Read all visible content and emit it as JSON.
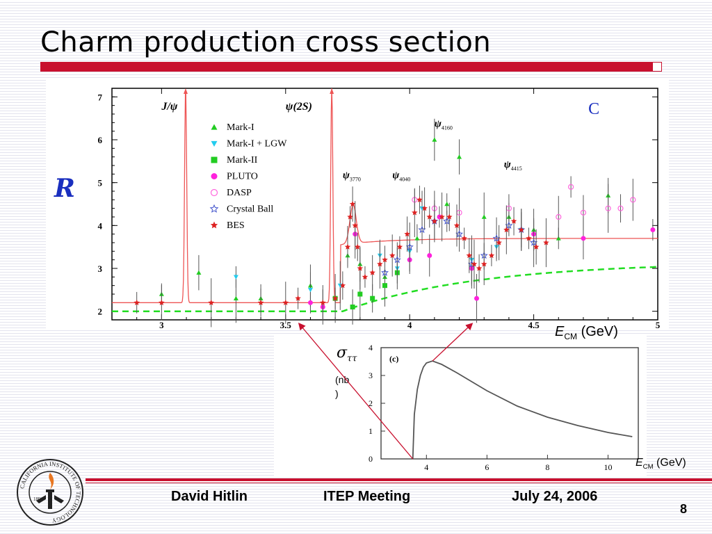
{
  "slide": {
    "title": "Charm production cross section",
    "footer": {
      "author": "David Hitlin",
      "meeting": "ITEP Meeting",
      "date": "July 24, 2006",
      "page": "8"
    },
    "logo_text": "CALIFORNIA INSTITUTE OF TECHNOLOGY",
    "logo_year": "1891",
    "colors": {
      "accent": "#c8102e",
      "r_label": "#1a2fbf"
    }
  },
  "chart_data": [
    {
      "type": "scatter",
      "ylabel": "R",
      "xlabel_italic": "E",
      "xlabel_sub": "CM",
      "xlabel_unit": " (GeV)",
      "panel_label": "C",
      "xlim": [
        2.8,
        5.0
      ],
      "ylim": [
        1.8,
        7.2
      ],
      "xticks": [
        "3",
        "3.5",
        "4",
        "4.5",
        "5"
      ],
      "xtick_values": [
        3,
        3.5,
        4,
        4.5,
        5
      ],
      "yticks": [
        "2",
        "3",
        "4",
        "5",
        "6",
        "7"
      ],
      "ytick_values": [
        2,
        3,
        4,
        5,
        6,
        7
      ],
      "resonances": [
        {
          "label": "J/ψ",
          "x": 3.097
        },
        {
          "label": "ψ(2S)",
          "x": 3.686
        },
        {
          "label": "ψ3770",
          "x": 3.77
        },
        {
          "label": "ψ4040",
          "x": 4.04
        },
        {
          "label": "ψ4160",
          "x": 4.16
        },
        {
          "label": "ψ4415",
          "x": 4.415
        }
      ],
      "legend": [
        {
          "name": "Mark-I",
          "marker": "triangle-up",
          "color": "#22cc22"
        },
        {
          "name": "Mark-I + LGW",
          "marker": "triangle-down",
          "color": "#22ccee"
        },
        {
          "name": "Mark-II",
          "marker": "square",
          "color": "#22cc22"
        },
        {
          "name": "PLUTO",
          "marker": "circle",
          "color": "#ff22dd"
        },
        {
          "name": "DASP",
          "marker": "circle-open",
          "color": "#ff66dd"
        },
        {
          "name": "Crystal Ball",
          "marker": "star-open",
          "color": "#4455cc"
        },
        {
          "name": "BES",
          "marker": "star",
          "color": "#dd2222"
        }
      ],
      "series": [
        {
          "name": "Mark-I",
          "color": "#22cc22",
          "marker": "triangle-up",
          "points": [
            [
              3.0,
              2.4
            ],
            [
              3.15,
              2.9
            ],
            [
              3.3,
              2.3
            ],
            [
              3.4,
              2.3
            ],
            [
              3.6,
              2.6
            ],
            [
              3.75,
              3.3
            ],
            [
              3.8,
              3.1
            ],
            [
              3.9,
              2.8
            ],
            [
              4.03,
              3.7
            ],
            [
              4.1,
              6.0
            ],
            [
              4.15,
              4.5
            ],
            [
              4.2,
              5.6
            ],
            [
              4.3,
              4.2
            ],
            [
              4.4,
              4.2
            ],
            [
              4.5,
              3.9
            ],
            [
              4.6,
              3.7
            ],
            [
              4.8,
              4.7
            ]
          ]
        },
        {
          "name": "Mark-I + LGW",
          "color": "#22ccee",
          "marker": "triangle-down",
          "points": [
            [
              3.3,
              2.8
            ],
            [
              3.6,
              2.5
            ],
            [
              3.72,
              2.6
            ],
            [
              3.88,
              3.3
            ],
            [
              3.95,
              3.0
            ],
            [
              4.0,
              3.4
            ],
            [
              4.05,
              4.4
            ],
            [
              4.25,
              3.2
            ],
            [
              4.35,
              3.5
            ],
            [
              4.45,
              3.9
            ]
          ]
        },
        {
          "name": "Mark-II",
          "color": "#22cc22",
          "marker": "square",
          "points": [
            [
              3.7,
              2.3
            ],
            [
              3.77,
              2.1
            ],
            [
              3.8,
              2.4
            ],
            [
              3.85,
              2.3
            ],
            [
              3.9,
              2.6
            ],
            [
              3.95,
              2.9
            ]
          ]
        },
        {
          "name": "PLUTO",
          "color": "#ff22dd",
          "marker": "circle",
          "points": [
            [
              3.6,
              2.2
            ],
            [
              3.65,
              2.1
            ],
            [
              3.78,
              3.8
            ],
            [
              4.0,
              3.2
            ],
            [
              4.08,
              3.3
            ],
            [
              4.12,
              4.2
            ],
            [
              4.25,
              3.0
            ],
            [
              4.27,
              2.3
            ],
            [
              4.5,
              3.8
            ],
            [
              4.7,
              3.7
            ],
            [
              4.98,
              3.9
            ]
          ]
        },
        {
          "name": "DASP",
          "color": "#ff66dd",
          "marker": "circle-open",
          "points": [
            [
              4.02,
              4.6
            ],
            [
              4.1,
              4.4
            ],
            [
              4.2,
              4.3
            ],
            [
              4.4,
              4.4
            ],
            [
              4.6,
              4.2
            ],
            [
              4.65,
              4.9
            ],
            [
              4.7,
              4.3
            ],
            [
              4.8,
              4.4
            ],
            [
              4.85,
              4.4
            ],
            [
              4.9,
              4.6
            ]
          ]
        },
        {
          "name": "Crystal Ball",
          "color": "#4455cc",
          "marker": "star-open",
          "points": [
            [
              3.9,
              2.9
            ],
            [
              3.95,
              3.2
            ],
            [
              4.0,
              3.5
            ],
            [
              4.05,
              3.9
            ],
            [
              4.1,
              4.1
            ],
            [
              4.15,
              4.1
            ],
            [
              4.2,
              3.8
            ],
            [
              4.25,
              3.1
            ],
            [
              4.3,
              3.3
            ],
            [
              4.35,
              3.7
            ],
            [
              4.4,
              4.0
            ],
            [
              4.45,
              3.9
            ],
            [
              4.5,
              3.6
            ]
          ]
        },
        {
          "name": "BES",
          "color": "#dd2222",
          "marker": "star",
          "points": [
            [
              2.9,
              2.2
            ],
            [
              3.0,
              2.2
            ],
            [
              3.2,
              2.2
            ],
            [
              3.4,
              2.2
            ],
            [
              3.5,
              2.2
            ],
            [
              3.55,
              2.3
            ],
            [
              3.65,
              2.2
            ],
            [
              3.7,
              2.3
            ],
            [
              3.73,
              2.6
            ],
            [
              3.75,
              3.5
            ],
            [
              3.76,
              4.2
            ],
            [
              3.77,
              4.5
            ],
            [
              3.78,
              4.0
            ],
            [
              3.79,
              3.5
            ],
            [
              3.8,
              3.0
            ],
            [
              3.82,
              2.8
            ],
            [
              3.85,
              2.9
            ],
            [
              3.88,
              3.1
            ],
            [
              3.9,
              3.2
            ],
            [
              3.93,
              3.3
            ],
            [
              3.96,
              3.5
            ],
            [
              3.99,
              3.8
            ],
            [
              4.02,
              4.3
            ],
            [
              4.04,
              4.6
            ],
            [
              4.06,
              4.4
            ],
            [
              4.08,
              4.2
            ],
            [
              4.1,
              4.1
            ],
            [
              4.13,
              4.2
            ],
            [
              4.16,
              4.2
            ],
            [
              4.19,
              4.0
            ],
            [
              4.22,
              3.7
            ],
            [
              4.24,
              3.3
            ],
            [
              4.26,
              3.1
            ],
            [
              4.28,
              3.0
            ],
            [
              4.3,
              3.1
            ],
            [
              4.33,
              3.3
            ],
            [
              4.36,
              3.6
            ],
            [
              4.39,
              3.9
            ],
            [
              4.42,
              4.1
            ],
            [
              4.45,
              3.9
            ],
            [
              4.48,
              3.7
            ],
            [
              4.51,
              3.5
            ],
            [
              4.55,
              3.6
            ]
          ]
        }
      ],
      "theory_curve_color": "#ee5555",
      "dashed_curve_color": "#22dd22"
    },
    {
      "type": "line",
      "panel_label": "(c)",
      "ylabel_symbol": "σ",
      "ylabel_sub": "ττ",
      "ylabel_unit": "(nb\n)",
      "xlabel_italic": "E",
      "xlabel_sub": "CM",
      "xlabel_unit": " (GeV)",
      "xlim": [
        2.5,
        11
      ],
      "ylim": [
        0,
        4
      ],
      "xticks": [
        "4",
        "6",
        "8",
        "10"
      ],
      "xtick_values": [
        4,
        6,
        8,
        10
      ],
      "yticks": [
        "0",
        "1",
        "2",
        "3",
        "4"
      ],
      "ytick_values": [
        0,
        1,
        2,
        3,
        4
      ],
      "series": [
        {
          "name": "",
          "x": [
            3.55,
            3.6,
            3.7,
            3.8,
            3.9,
            4.0,
            4.2,
            4.5,
            5.0,
            6.0,
            7.0,
            8.0,
            9.0,
            10.0,
            10.8
          ],
          "y": [
            0.0,
            1.6,
            2.5,
            3.0,
            3.3,
            3.45,
            3.52,
            3.4,
            3.1,
            2.45,
            1.9,
            1.5,
            1.2,
            0.95,
            0.8
          ]
        }
      ]
    }
  ]
}
